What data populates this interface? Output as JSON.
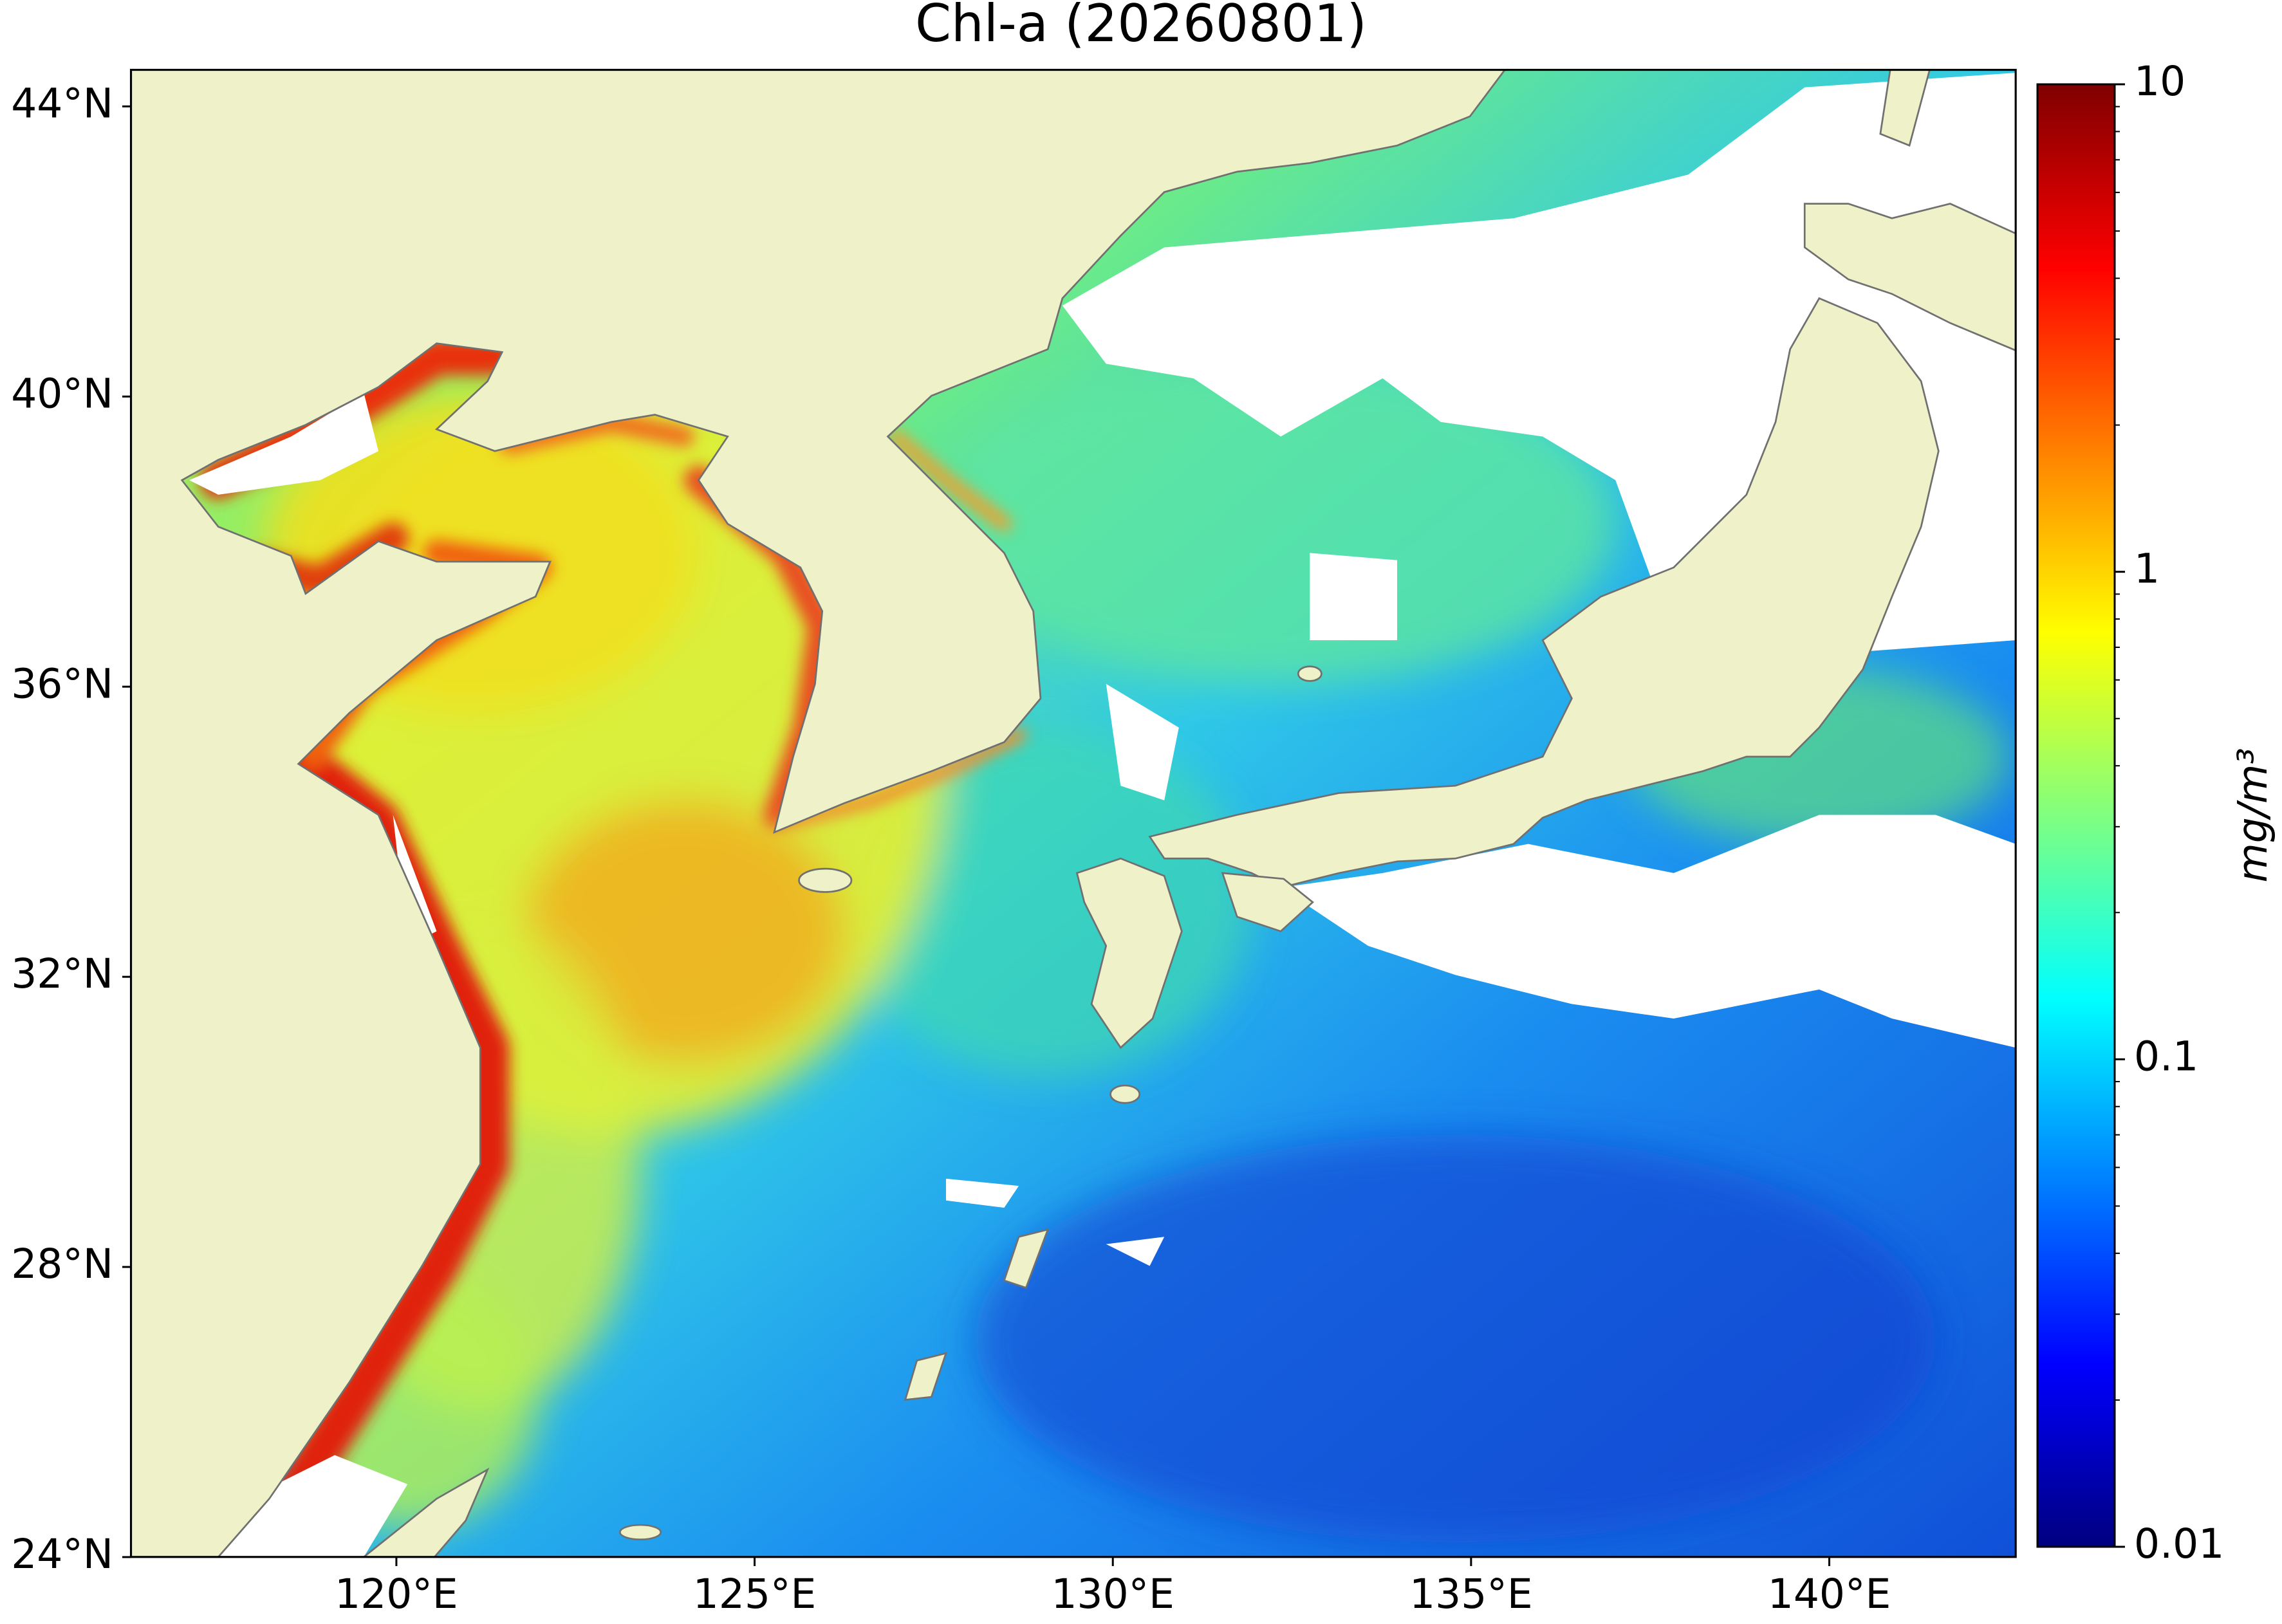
{
  "chart_data": {
    "type": "map",
    "title": "Chl-a (20260801)",
    "xlim": [
      116.3,
      142.6
    ],
    "ylim": [
      24,
      44.5
    ],
    "xticks": [
      {
        "value": 120,
        "label": "120°E"
      },
      {
        "value": 125,
        "label": "125°E"
      },
      {
        "value": 130,
        "label": "130°E"
      },
      {
        "value": 135,
        "label": "135°E"
      },
      {
        "value": 140,
        "label": "140°E"
      }
    ],
    "yticks": [
      {
        "value": 24,
        "label": "24°N"
      },
      {
        "value": 28,
        "label": "28°N"
      },
      {
        "value": 32,
        "label": "32°N"
      },
      {
        "value": 36,
        "label": "36°N"
      },
      {
        "value": 40,
        "label": "40°N"
      },
      {
        "value": 44,
        "label": "44°N"
      }
    ],
    "colorbar": {
      "label": "mg/m³",
      "colormap": "jet",
      "log_scale": true,
      "clim": [
        0.01,
        10
      ],
      "ticks": [
        0.01,
        0.1,
        1,
        10
      ]
    }
  }
}
